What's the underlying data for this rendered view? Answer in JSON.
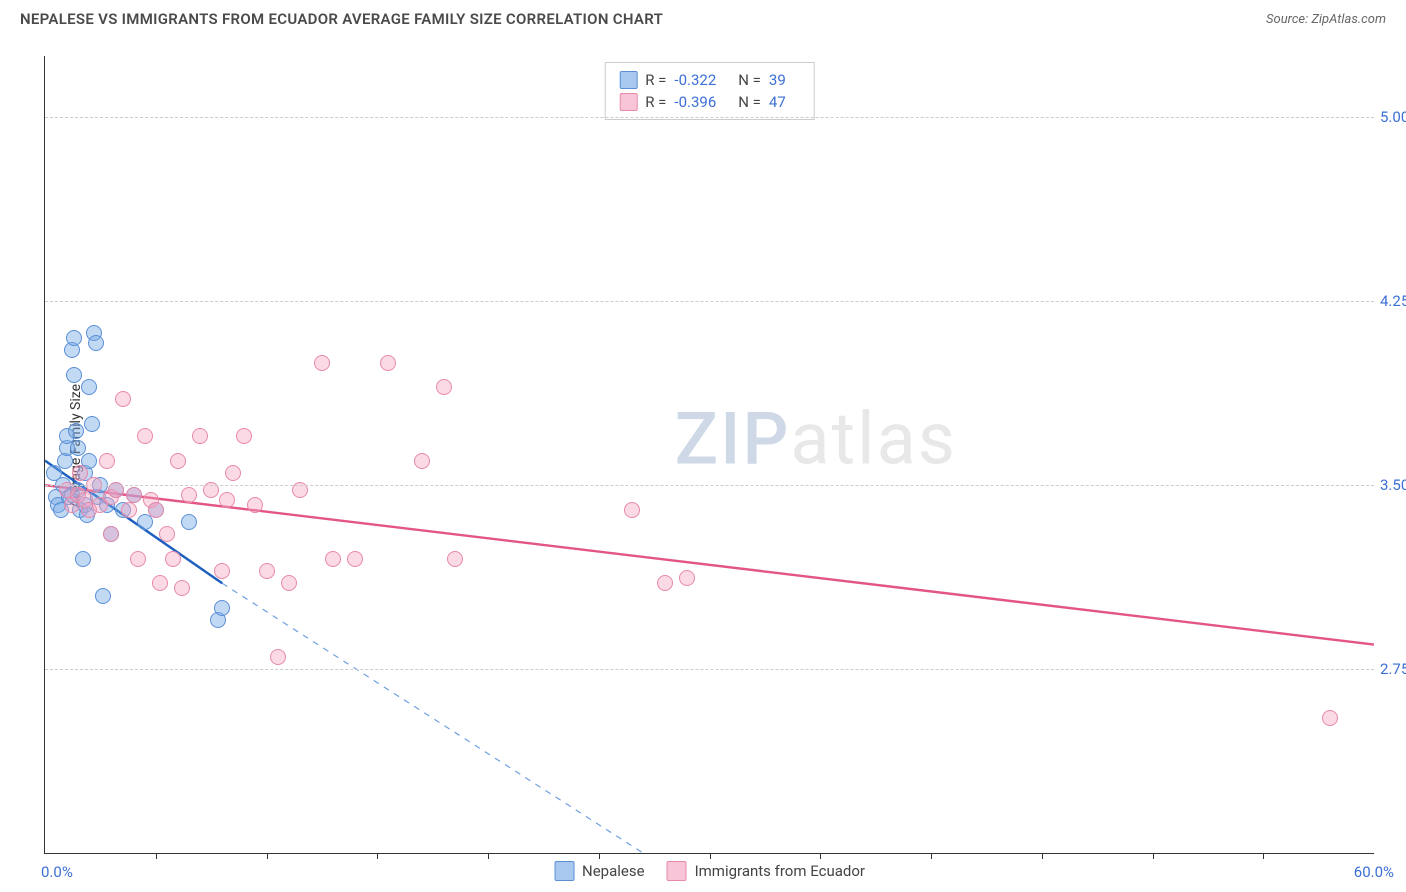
{
  "header": {
    "title": "NEPALESE VS IMMIGRANTS FROM ECUADOR AVERAGE FAMILY SIZE CORRELATION CHART",
    "source_prefix": "Source: ",
    "source_name": "ZipAtlas.com"
  },
  "chart": {
    "type": "scatter",
    "ylabel": "Average Family Size",
    "xlim": [
      0,
      60
    ],
    "ylim": [
      2.0,
      5.25
    ],
    "x_tick_step": 5,
    "x_start_label": "0.0%",
    "x_end_label": "60.0%",
    "y_ticks": [
      2.75,
      3.5,
      4.25,
      5.0
    ],
    "y_tick_labels": [
      "2.75",
      "3.50",
      "4.25",
      "5.00"
    ],
    "grid_color": "#d6d6d6",
    "background_color": "#ffffff",
    "axis_color": "#333333",
    "tick_label_color": "#3b6fd6",
    "tick_fontsize": 15,
    "ylabel_fontsize": 14,
    "marker_radius": 8,
    "marker_border_width": 1.2,
    "trend_line_width_solid": 2.4,
    "trend_line_width_dashed": 1.2
  },
  "series": [
    {
      "key": "nepalese",
      "label": "Nepalese",
      "marker_fill": "rgba(120,170,230,0.45)",
      "marker_stroke": "#5a8fd6",
      "trend_solid_color": "#1c5fc0",
      "trend_dashed_color": "#6fa0e0",
      "R": "-0.322",
      "N": "39",
      "swatch_fill": "#a8c8ef",
      "swatch_stroke": "#5a8fd6",
      "trend_solid": {
        "x1": 0,
        "y1": 3.6,
        "x2": 8,
        "y2": 3.1
      },
      "trend_dashed": {
        "x1": 8,
        "y1": 3.1,
        "x2": 27,
        "y2": 2.0
      },
      "points": [
        [
          0.4,
          3.55
        ],
        [
          0.5,
          3.45
        ],
        [
          0.6,
          3.42
        ],
        [
          0.7,
          3.4
        ],
        [
          0.8,
          3.5
        ],
        [
          0.9,
          3.6
        ],
        [
          1.0,
          3.65
        ],
        [
          1.0,
          3.7
        ],
        [
          1.1,
          3.45
        ],
        [
          1.2,
          3.46
        ],
        [
          1.2,
          4.05
        ],
        [
          1.3,
          4.1
        ],
        [
          1.3,
          3.95
        ],
        [
          1.4,
          3.72
        ],
        [
          1.5,
          3.65
        ],
        [
          1.5,
          3.48
        ],
        [
          1.6,
          3.4
        ],
        [
          1.7,
          3.2
        ],
        [
          1.8,
          3.55
        ],
        [
          1.8,
          3.42
        ],
        [
          1.9,
          3.38
        ],
        [
          2.0,
          3.6
        ],
        [
          2.0,
          3.9
        ],
        [
          2.1,
          3.75
        ],
        [
          2.2,
          4.12
        ],
        [
          2.3,
          4.08
        ],
        [
          2.4,
          3.45
        ],
        [
          2.5,
          3.5
        ],
        [
          2.6,
          3.05
        ],
        [
          2.8,
          3.42
        ],
        [
          3.0,
          3.3
        ],
        [
          3.2,
          3.48
        ],
        [
          3.5,
          3.4
        ],
        [
          4.0,
          3.46
        ],
        [
          4.5,
          3.35
        ],
        [
          5.0,
          3.4
        ],
        [
          6.5,
          3.35
        ],
        [
          7.8,
          2.95
        ],
        [
          8.0,
          3.0
        ]
      ]
    },
    {
      "key": "ecuador",
      "label": "Immigrants from Ecuador",
      "marker_fill": "rgba(244,160,190,0.40)",
      "marker_stroke": "#e889aa",
      "trend_solid_color": "#e25585",
      "trend_dashed_color": "#f0a0be",
      "R": "-0.396",
      "N": "47",
      "swatch_fill": "#f7c5d7",
      "swatch_stroke": "#e889aa",
      "trend_solid": {
        "x1": 0,
        "y1": 3.5,
        "x2": 60,
        "y2": 2.85
      },
      "trend_dashed": null,
      "points": [
        [
          1.0,
          3.48
        ],
        [
          1.2,
          3.42
        ],
        [
          1.5,
          3.46
        ],
        [
          1.6,
          3.55
        ],
        [
          1.8,
          3.44
        ],
        [
          2.0,
          3.4
        ],
        [
          2.2,
          3.5
        ],
        [
          2.5,
          3.42
        ],
        [
          2.8,
          3.6
        ],
        [
          3.0,
          3.45
        ],
        [
          3.0,
          3.3
        ],
        [
          3.2,
          3.48
        ],
        [
          3.5,
          3.85
        ],
        [
          3.8,
          3.4
        ],
        [
          4.0,
          3.46
        ],
        [
          4.2,
          3.2
        ],
        [
          4.5,
          3.7
        ],
        [
          4.8,
          3.44
        ],
        [
          5.0,
          3.4
        ],
        [
          5.2,
          3.1
        ],
        [
          5.5,
          3.3
        ],
        [
          5.8,
          3.2
        ],
        [
          6.0,
          3.6
        ],
        [
          6.2,
          3.08
        ],
        [
          6.5,
          3.46
        ],
        [
          7.0,
          3.7
        ],
        [
          7.5,
          3.48
        ],
        [
          8.0,
          3.15
        ],
        [
          8.2,
          3.44
        ],
        [
          8.5,
          3.55
        ],
        [
          9.0,
          3.7
        ],
        [
          9.5,
          3.42
        ],
        [
          10.0,
          3.15
        ],
        [
          10.5,
          2.8
        ],
        [
          11.0,
          3.1
        ],
        [
          11.5,
          3.48
        ],
        [
          12.5,
          4.0
        ],
        [
          13.0,
          3.2
        ],
        [
          14.0,
          3.2
        ],
        [
          15.5,
          4.0
        ],
        [
          17.0,
          3.6
        ],
        [
          18.0,
          3.9
        ],
        [
          18.5,
          3.2
        ],
        [
          26.5,
          3.4
        ],
        [
          28.0,
          3.1
        ],
        [
          29.0,
          3.12
        ],
        [
          58.0,
          2.55
        ]
      ]
    }
  ],
  "stats_box": {
    "R_label": "R =",
    "N_label": "N ="
  },
  "watermark": {
    "zip": "ZIP",
    "atlas": "atlas"
  }
}
